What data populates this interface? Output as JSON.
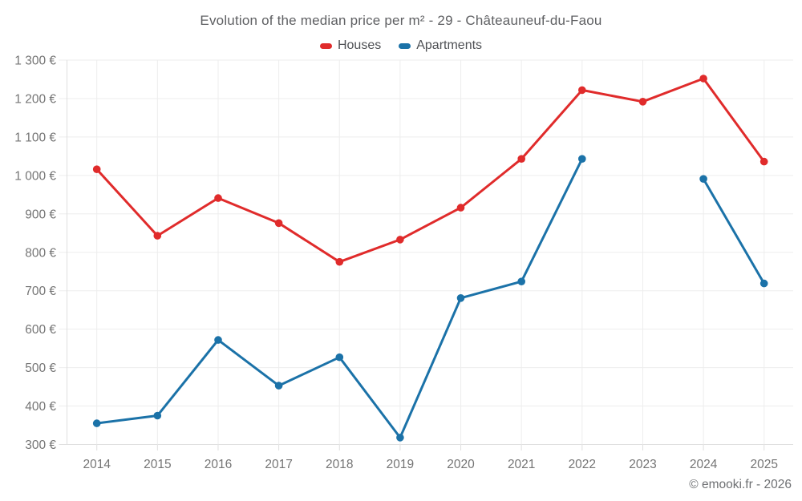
{
  "page": {
    "footer_credit": "© emooki.fr - 2026"
  },
  "chart_data": {
    "type": "line",
    "title": "Evolution of the median price per m² - 29 - Châteauneuf-du-Faou",
    "x": [
      "2014",
      "2015",
      "2016",
      "2017",
      "2018",
      "2019",
      "2020",
      "2021",
      "2022",
      "2023",
      "2024",
      "2025"
    ],
    "series": [
      {
        "name": "Houses",
        "color": "#e02b2b",
        "values": [
          1016,
          843,
          941,
          876,
          775,
          833,
          916,
          1043,
          1222,
          1192,
          1252,
          1036
        ]
      },
      {
        "name": "Apartments",
        "color": "#1b72a8",
        "values": [
          355,
          375,
          572,
          453,
          527,
          318,
          681,
          724,
          1043,
          null,
          991,
          719
        ]
      }
    ],
    "ylim": [
      300,
      1300
    ],
    "ytick_step": 100,
    "ytick_format": "{value} €",
    "ytick_labels": [
      "300 €",
      "400 €",
      "500 €",
      "600 €",
      "700 €",
      "800 €",
      "900 €",
      "1 000 €",
      "1 100 €",
      "1 200 €",
      "1 300 €"
    ],
    "grid": true,
    "legend_position": "top",
    "marker": "circle",
    "marker_radius": 5,
    "line_width": 3,
    "text_color": "#757575",
    "grid_color": "#ededed",
    "axis_color": "#dfdfdf"
  }
}
